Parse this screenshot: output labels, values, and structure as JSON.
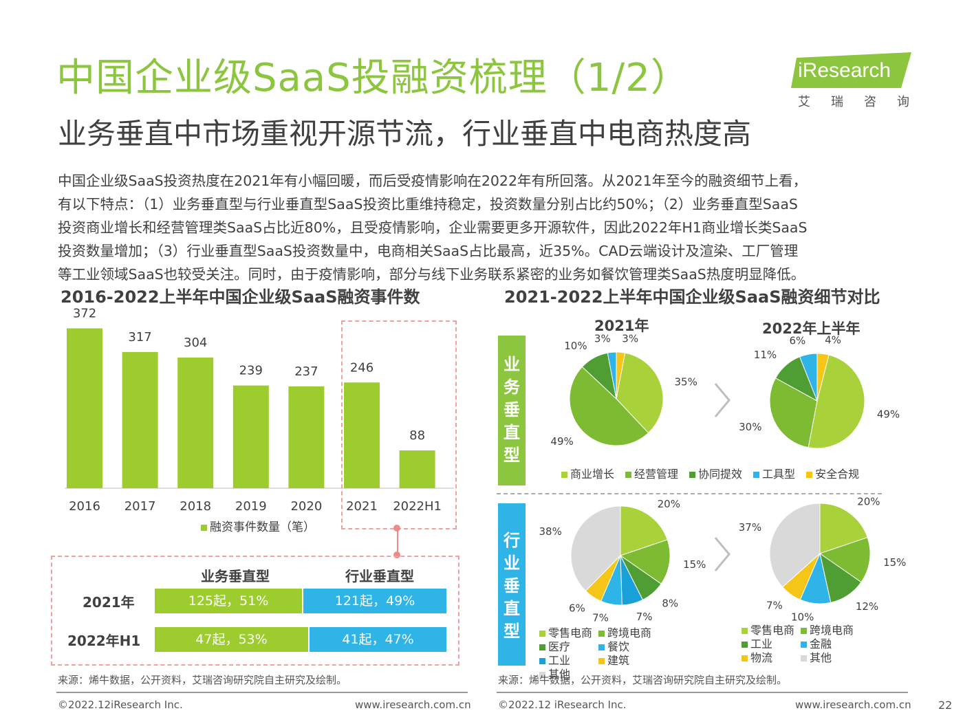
{
  "header": {
    "title": "中国企业级SaaS投融资梳理（1/2）",
    "subtitle": "业务垂直中市场重视开源节流，行业垂直中电商热度高",
    "logo_text": "iResearch",
    "logo_sub": "艾瑞咨询"
  },
  "body_lines": [
    "中国企业级SaaS投资热度在2021年有小幅回暖，而后受疫情影响在2022年有所回落。从2021年至今的融资细节上看，",
    "有以下特点：（1）业务垂直型与行业垂直型SaaS投资比重维持稳定，投资数量分别占比约50%；（2）业务垂直型SaaS",
    "投资商业增长和经营管理类SaaS占比近80%，且受疫情影响，企业需要更多开源软件，因此2022年H1商业增长类SaaS",
    "投资数量增加；（3）行业垂直型SaaS投资数量中，电商相关SaaS占比最高，近35%。CAD云端设计及渲染、工厂管理",
    "等工业领域SaaS也较受关注。同时，由于疫情影响，部分与线下业务联系紧密的业务如餐饮管理类SaaS热度明显降低。"
  ],
  "left_panel": {
    "title": "2016-2022上半年中国企业级SaaS融资事件数",
    "legend": "融资事件数量（笔）",
    "compare_table": {
      "col_heads": [
        "业务垂直型",
        "行业垂直型"
      ],
      "rows": [
        {
          "label": "2021年",
          "business": "125起，51%",
          "industry": "121起，49%",
          "business_share": 0.51
        },
        {
          "label": "2022年H1",
          "business": "47起，53%",
          "industry": "41起，47%",
          "business_share": 0.53
        }
      ]
    },
    "source": "来源：烯牛数据，公开资料，艾瑞咨询研究院自主研究及绘制。",
    "footer_left": "©2022.12iResearch Inc.",
    "footer_right": "www.iresearch.com.cn"
  },
  "right_panel": {
    "title": "2021-2022上半年中国企业级SaaS融资细节对比",
    "year_2021": "2021年",
    "year_2022": "2022年上半年",
    "row_business": "业务垂直型",
    "row_industry": "行业垂直型",
    "business_legend": [
      "商业增长",
      "经营管理",
      "协同提效",
      "工具型",
      "安全合规"
    ],
    "industry_legend_left": [
      "零售电商",
      "跨境电商",
      "医疗",
      "餐饮",
      "工业",
      "建筑",
      "其他"
    ],
    "industry_legend_right": [
      "零售电商",
      "跨境电商",
      "工业",
      "金融",
      "物流",
      "其他"
    ],
    "source": "来源：烯牛数据，公开资料，艾瑞咨询研究院自主研究及绘制。",
    "footer_left": "©2022.12 iResearch Inc.",
    "footer_right": "www.iresearch.com.cn",
    "page_number": "22"
  },
  "colors": {
    "brand_green": "#8cc63f",
    "bar_green": "#9dcc2f",
    "blue": "#2fb4e8",
    "dash": "#f0a0a0"
  },
  "chart_data": [
    {
      "type": "bar",
      "title": "2016-2022上半年中国企业级SaaS融资事件数",
      "categories": [
        "2016",
        "2017",
        "2018",
        "2019",
        "2020",
        "2021",
        "2022H1"
      ],
      "series": [
        {
          "name": "融资事件数量（笔）",
          "values": [
            372,
            317,
            304,
            239,
            237,
            246,
            88
          ]
        }
      ],
      "ylim": [
        0,
        400
      ],
      "color": "#9dcc2f"
    },
    {
      "type": "pie",
      "title": "2021年",
      "group": "业务垂直型",
      "labels": [
        "安全合规",
        "商业增长",
        "经营管理",
        "协同提效",
        "工具型"
      ],
      "values": [
        3,
        35,
        49,
        10,
        3
      ],
      "colors": [
        "#f5c518",
        "#a8d13a",
        "#7dbb32",
        "#4e9e33",
        "#2fb4e8"
      ]
    },
    {
      "type": "pie",
      "title": "2022年上半年",
      "group": "业务垂直型",
      "labels": [
        "安全合规",
        "商业增长",
        "经营管理",
        "协同提效",
        "工具型"
      ],
      "values": [
        4,
        49,
        30,
        11,
        6
      ],
      "colors": [
        "#f5c518",
        "#a8d13a",
        "#7dbb32",
        "#4e9e33",
        "#2fb4e8"
      ]
    },
    {
      "type": "pie",
      "title": "2021年",
      "group": "行业垂直型",
      "labels": [
        "零售电商",
        "跨境电商",
        "医疗",
        "工业",
        "餐饮",
        "建筑",
        "其他"
      ],
      "values": [
        20,
        15,
        8,
        7,
        7,
        6,
        38
      ],
      "colors": [
        "#a8d13a",
        "#7dbb32",
        "#4e9e33",
        "#1aa0d8",
        "#2fb4e8",
        "#f5c518",
        "#d9d9d9"
      ]
    },
    {
      "type": "pie",
      "title": "2022年上半年",
      "group": "行业垂直型",
      "labels": [
        "零售电商",
        "跨境电商",
        "工业",
        "金融",
        "物流",
        "其他"
      ],
      "values": [
        20,
        15,
        12,
        10,
        7,
        37
      ],
      "colors": [
        "#a8d13a",
        "#7dbb32",
        "#4e9e33",
        "#2fb4e8",
        "#f5c518",
        "#d9d9d9"
      ]
    }
  ]
}
